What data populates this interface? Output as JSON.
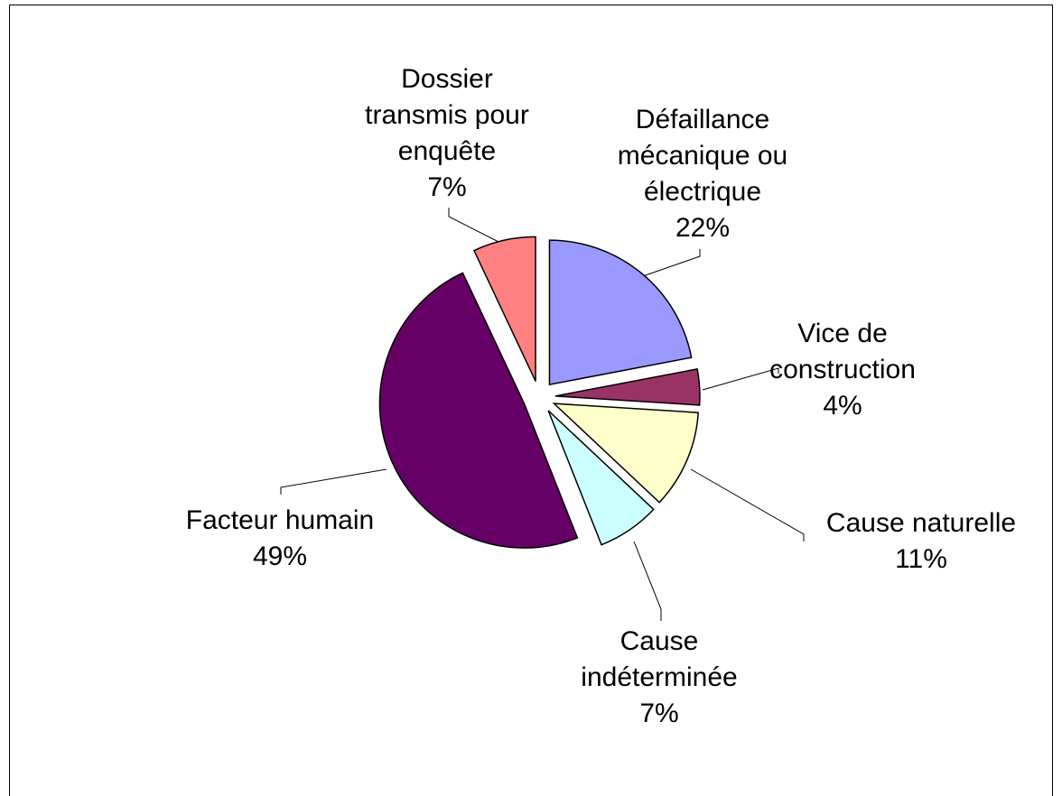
{
  "chart_data": {
    "type": "pie",
    "categories": [
      "Défaillance mécanique ou électrique",
      "Vice de construction",
      "Cause naturelle",
      "Cause indéterminée",
      "Facteur humain",
      "Dossier transmis pour enquête"
    ],
    "values": [
      22,
      4,
      11,
      7,
      49,
      7
    ],
    "value_labels": [
      "22%",
      "4%",
      "11%",
      "7%",
      "49%",
      "7%"
    ],
    "colors": [
      "#9999ff",
      "#993366",
      "#ffffcc",
      "#ccffff",
      "#660066",
      "#ff8080"
    ]
  }
}
